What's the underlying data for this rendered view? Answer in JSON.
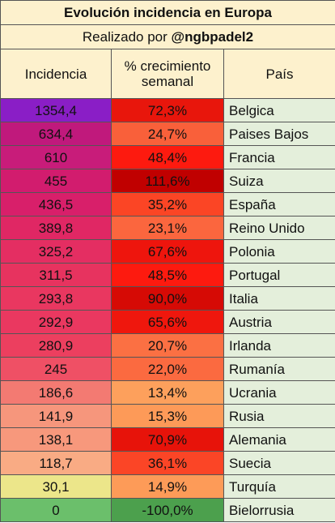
{
  "header": {
    "title": "Evolución incidencia en Europa",
    "subtitle_prefix": "Realizado por ",
    "subtitle_handle": "@ngbpadel2"
  },
  "table": {
    "columns": [
      "Incidencia",
      "% crecimiento semanal",
      "País"
    ],
    "rows": [
      [
        "1354,4",
        "72,3%",
        "Belgica"
      ],
      [
        "634,4",
        "24,7%",
        "Paises Bajos"
      ],
      [
        "610",
        "48,4%",
        "Francia"
      ],
      [
        "455",
        "111,6%",
        "Suiza"
      ],
      [
        "436,5",
        "35,2%",
        "España"
      ],
      [
        "389,8",
        "23,1%",
        "Reino Unido"
      ],
      [
        "325,2",
        "67,6%",
        "Polonia"
      ],
      [
        "311,5",
        "48,5%",
        "Portugal"
      ],
      [
        "293,8",
        "90,0%",
        "Italia"
      ],
      [
        "292,9",
        "65,6%",
        "Austria"
      ],
      [
        "280,9",
        "20,7%",
        "Irlanda"
      ],
      [
        "245",
        "22,0%",
        "Rumanía"
      ],
      [
        "186,6",
        "13,4%",
        "Ucrania"
      ],
      [
        "141,9",
        "15,3%",
        "Rusia"
      ],
      [
        "138,1",
        "70,9%",
        "Alemania"
      ],
      [
        "118,7",
        "36,1%",
        "Suecia"
      ],
      [
        "30,1",
        "14,9%",
        "Turquía"
      ],
      [
        "0",
        "-100,0%",
        "Bielorrusia"
      ]
    ],
    "cell_colors": [
      [
        "#8a1ec6",
        "#e8160c"
      ],
      [
        "#c0197c",
        "#f9603a"
      ],
      [
        "#c81c7a",
        "#fd1a0f"
      ],
      [
        "#d21c6e",
        "#c00000"
      ],
      [
        "#d81f6a",
        "#fb4525"
      ],
      [
        "#e02764",
        "#fb663e"
      ],
      [
        "#e42e62",
        "#ee150d"
      ],
      [
        "#e7335f",
        "#fd1a0f"
      ],
      [
        "#e93760",
        "#d60a05"
      ],
      [
        "#ea3860",
        "#ef170d"
      ],
      [
        "#ec3f5f",
        "#fb7043"
      ],
      [
        "#ef5065",
        "#fb6a40"
      ],
      [
        "#f37a72",
        "#fda05c"
      ],
      [
        "#f6967c",
        "#fd9a58"
      ],
      [
        "#f7987c",
        "#e7130a"
      ],
      [
        "#f9ab84",
        "#fb4526"
      ],
      [
        "#ece68a",
        "#fd9b58"
      ],
      [
        "#6bbf6b",
        "#4ca04d"
      ]
    ],
    "country_color": "#e4efdb",
    "header_color": "#fdf1cd"
  }
}
